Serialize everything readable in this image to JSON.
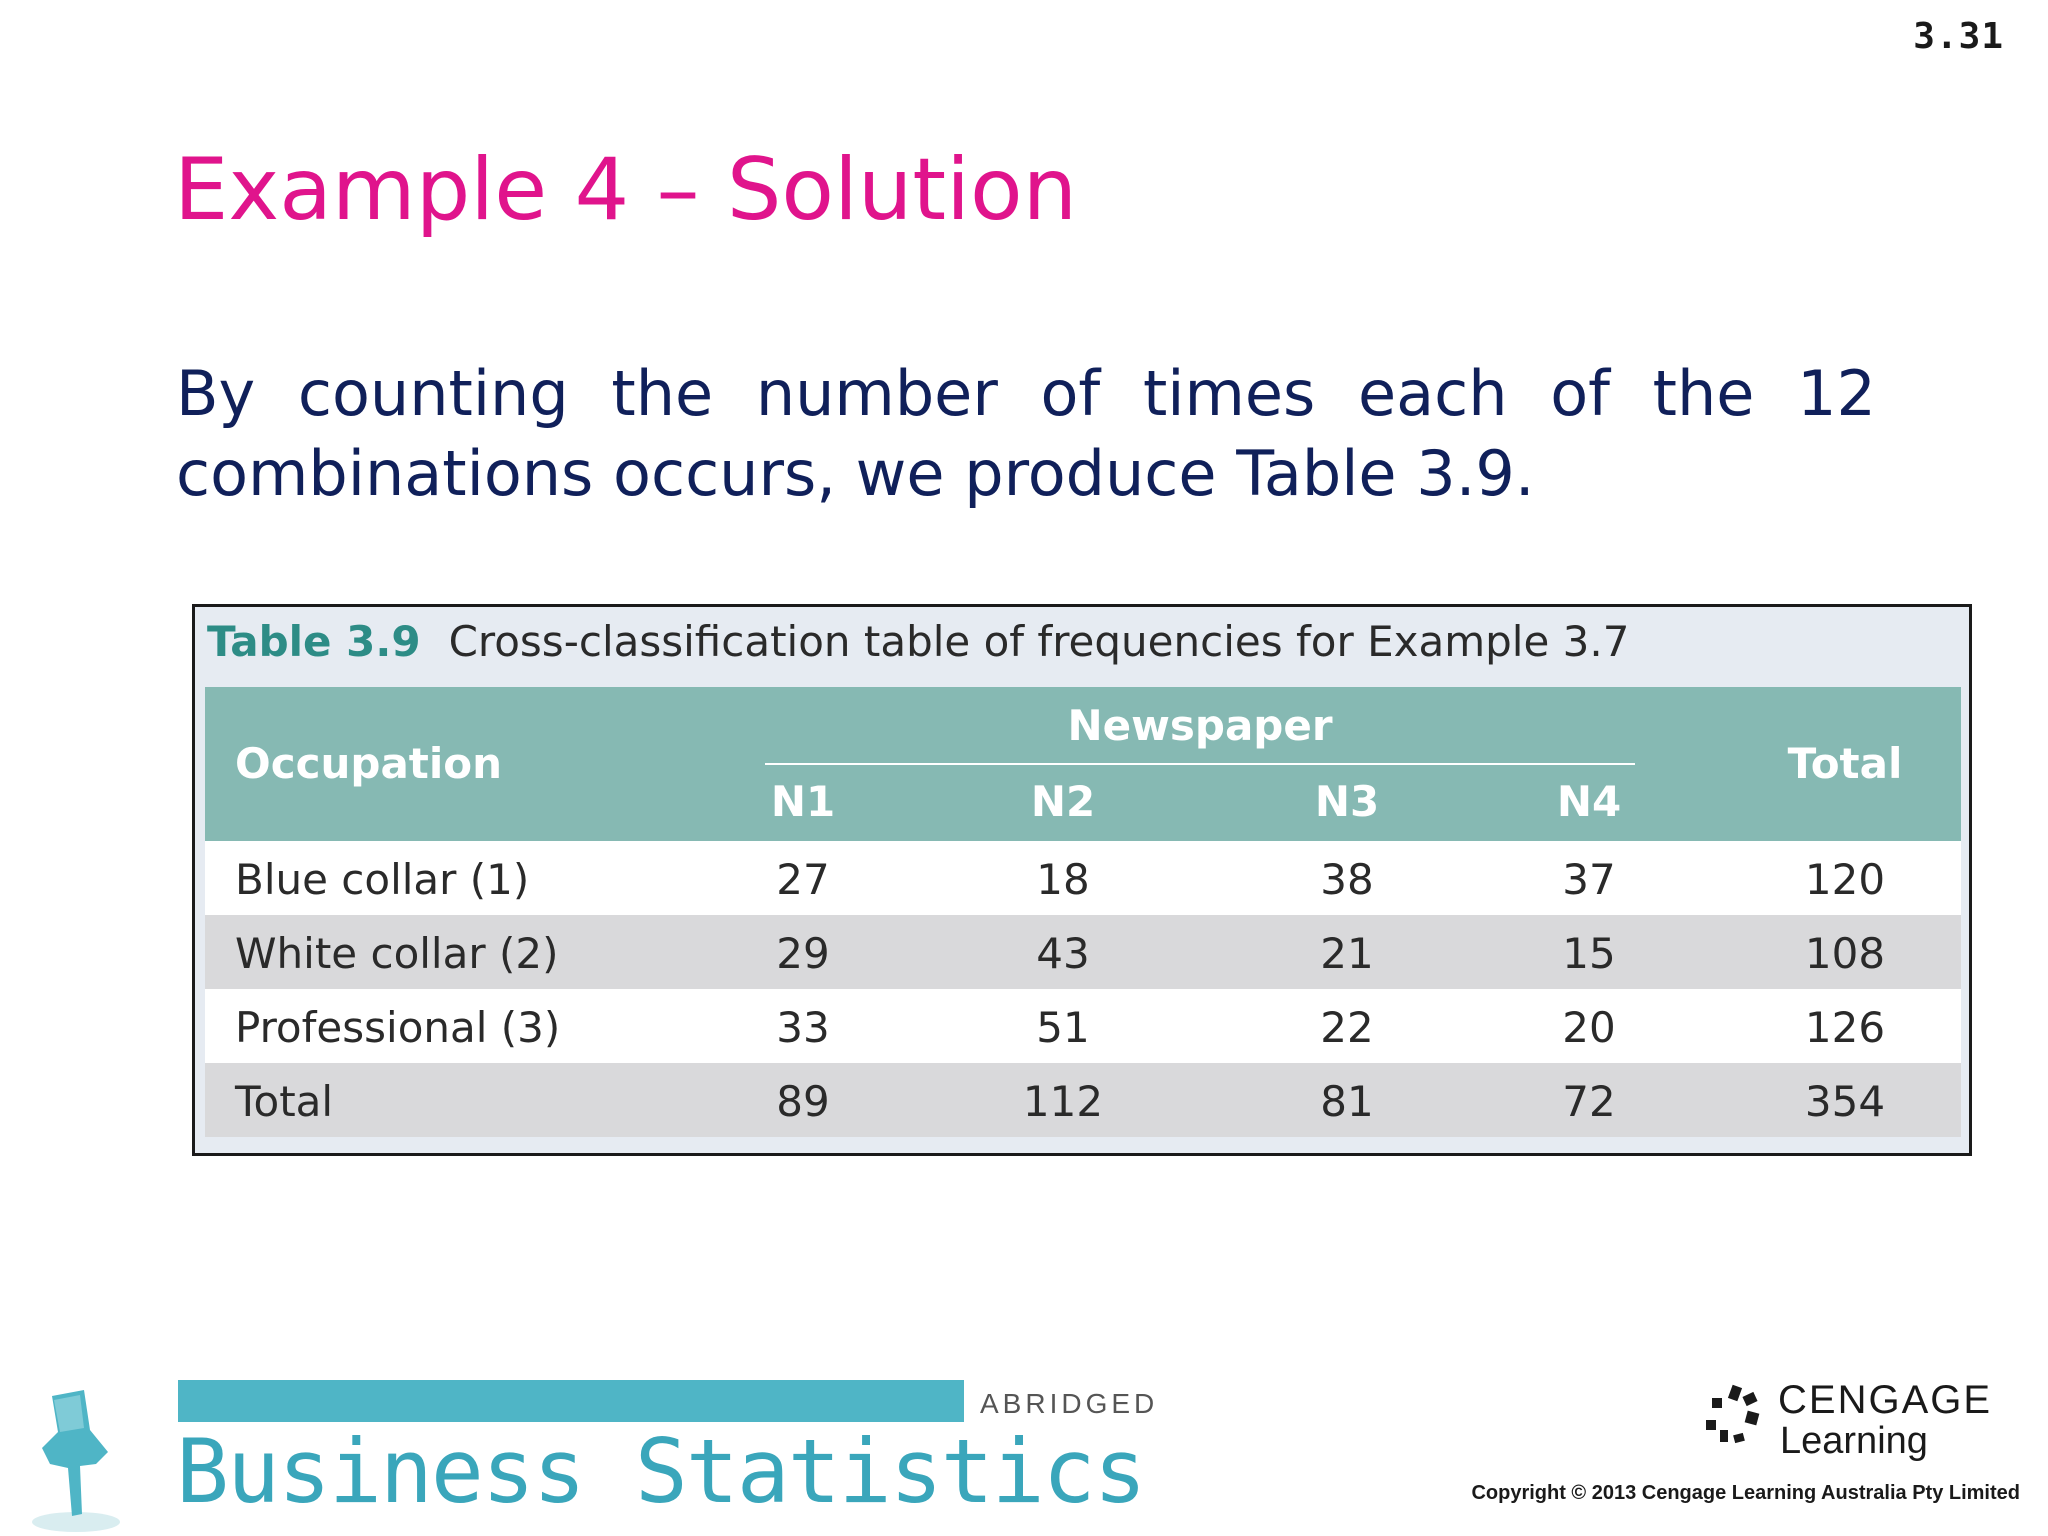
{
  "slide": {
    "number": "3.31",
    "title": "Example 4 – Solution",
    "body": "By counting the number of times each of the 12 combinations occurs, we produce Table 3.9."
  },
  "table": {
    "caption_number": "Table 3.9",
    "caption_text": "Cross-classification table of frequencies for Example 3.7",
    "row_header": "Occupation",
    "group_header": "Newspaper",
    "columns": [
      "N1",
      "N2",
      "N3",
      "N4"
    ],
    "total_header": "Total",
    "rows": [
      {
        "label": "Blue collar (1)",
        "values": [
          "27",
          "18",
          "38",
          "37"
        ],
        "total": "120"
      },
      {
        "label": "White collar (2)",
        "values": [
          "29",
          "43",
          "21",
          "15"
        ],
        "total": "108"
      },
      {
        "label": "Professional (3)",
        "values": [
          "33",
          "51",
          "22",
          "20"
        ],
        "total": "126"
      },
      {
        "label": "Total",
        "values": [
          "89",
          "112",
          "81",
          "72"
        ],
        "total": "354"
      }
    ]
  },
  "footer": {
    "abridged": "ABRIDGED",
    "book_title": "Business Statistics",
    "publisher_line1": "CENGAGE",
    "publisher_line2": "Learning",
    "copyright": "Copyright © 2013 Cengage Learning Australia Pty Limited"
  },
  "colors": {
    "title": "#e0148c",
    "body_text": "#10205a",
    "table_header": "#86b9b3",
    "brand": "#4fb5c6"
  }
}
